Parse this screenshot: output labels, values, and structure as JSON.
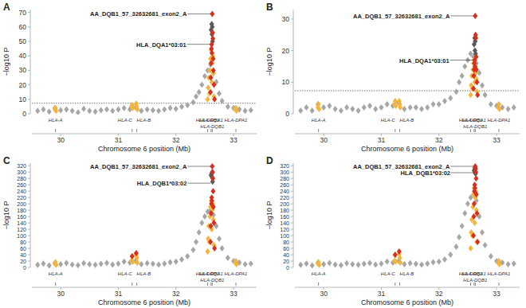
{
  "chart_data": [
    {
      "type": "scatter",
      "title": "A",
      "xlabel": "Chromosome 6 position (Mb)",
      "ylabel": "−log10 P",
      "xlim": [
        29.5,
        33.4
      ],
      "xticks": [
        30,
        31,
        32,
        33
      ],
      "ylim": [
        0,
        72
      ],
      "yticks": [
        0,
        10,
        20,
        30,
        40,
        50,
        60,
        70
      ],
      "marker": "diamond",
      "reference_line": 7.3,
      "series": [
        {
          "color": "#a6a6a6",
          "x": [
            29.6,
            29.7,
            29.8,
            29.9,
            30.0,
            30.1,
            30.2,
            30.3,
            30.4,
            30.5,
            30.6,
            30.7,
            30.8,
            30.9,
            31.0,
            31.1,
            31.2,
            31.3,
            31.4,
            31.5,
            31.6,
            31.7,
            31.8,
            31.9,
            32.0,
            32.1,
            32.2,
            32.3,
            32.35,
            32.4,
            32.45,
            32.5,
            32.55,
            32.6,
            32.65,
            32.7,
            32.75,
            32.8,
            32.9,
            33.0,
            33.1,
            33.2,
            33.3
          ],
          "values": [
            2,
            3,
            1.5,
            4,
            2.5,
            3,
            2,
            1,
            3.5,
            2,
            1.5,
            2.5,
            3,
            2,
            3,
            4,
            3,
            4.5,
            2,
            3,
            2.5,
            2,
            3,
            4,
            3.5,
            5,
            6,
            8,
            12,
            15,
            20,
            26,
            30,
            34,
            28,
            22,
            14,
            9,
            5,
            4,
            3,
            2,
            2.5
          ]
        },
        {
          "color": "#f5b53d",
          "x": [
            29.9,
            29.91,
            29.92,
            31.23,
            31.24,
            31.25,
            31.31,
            31.32,
            31.33,
            32.55,
            32.56,
            32.57,
            32.58,
            32.59,
            32.6,
            32.61,
            32.62,
            32.63,
            32.64,
            32.65,
            32.66,
            33.03,
            33.04,
            33.05
          ],
          "values": [
            3,
            4,
            2,
            5,
            6,
            4,
            7,
            5,
            3,
            10,
            18,
            25,
            14,
            30,
            38,
            44,
            22,
            35,
            40,
            28,
            12,
            3,
            4,
            2
          ]
        },
        {
          "color": "#5a5a5a",
          "x": [
            32.61,
            32.62,
            32.625,
            32.63,
            32.635
          ],
          "values": [
            58,
            62,
            55,
            60,
            50
          ]
        },
        {
          "color": "#d7301f",
          "x": [
            32.6,
            32.605,
            32.61,
            32.615,
            32.62,
            32.625,
            32.63,
            32.635,
            32.64,
            32.645,
            32.65,
            32.66,
            32.67
          ],
          "values": [
            15,
            25,
            35,
            45,
            48,
            42,
            69,
            56,
            52,
            38,
            30,
            20,
            10
          ]
        }
      ],
      "annotations": [
        {
          "text": "AA_DQB1_57_32632681_exon2_A",
          "x": 32.63,
          "y": 69
        },
        {
          "text": "HLA_DQA1*03:01",
          "x": 32.62,
          "y": 48
        }
      ],
      "genes": [
        {
          "label": "HLA-A",
          "x": 29.91
        },
        {
          "label": "HLA-C",
          "x": 31.24
        },
        {
          "label": "HLA-B",
          "x": 31.32
        },
        {
          "label": "HLA-DRB1",
          "x": 32.55
        },
        {
          "label": "HLA-DQA1",
          "x": 32.61
        },
        {
          "label": "HLA-DQB1",
          "x": 32.63
        },
        {
          "label": "HLA-DPA1",
          "x": 33.04
        }
      ]
    },
    {
      "type": "scatter",
      "title": "B",
      "xlabel": "Chromosome 6 position (Mb)",
      "ylabel": "−log10 P",
      "xlim": [
        29.5,
        33.4
      ],
      "xticks": [
        30,
        31,
        32,
        33
      ],
      "ylim": [
        0,
        33
      ],
      "yticks": [
        0,
        10,
        20,
        30
      ],
      "marker": "diamond",
      "reference_line": 7.3,
      "series": [
        {
          "color": "#a6a6a6",
          "x": [
            29.6,
            29.7,
            29.8,
            29.9,
            30.0,
            30.1,
            30.2,
            30.3,
            30.4,
            30.5,
            30.6,
            30.7,
            30.8,
            30.9,
            31.0,
            31.1,
            31.2,
            31.3,
            31.4,
            31.5,
            31.6,
            31.7,
            31.8,
            31.9,
            32.0,
            32.1,
            32.2,
            32.3,
            32.35,
            32.4,
            32.45,
            32.5,
            32.55,
            32.6,
            32.65,
            32.7,
            32.75,
            32.8,
            32.9,
            33.0,
            33.1,
            33.2,
            33.3
          ],
          "values": [
            1,
            2,
            1,
            3,
            2,
            2.5,
            1.5,
            1,
            2,
            1.5,
            1,
            2,
            2.5,
            1.5,
            2,
            3,
            2.5,
            3.5,
            1.5,
            2,
            2,
            1.5,
            2,
            3,
            3,
            4,
            5,
            7,
            10,
            12,
            15,
            17,
            19,
            18,
            16,
            13,
            9,
            6,
            3,
            2.5,
            2,
            1.5,
            2
          ]
        },
        {
          "color": "#f5b53d",
          "x": [
            29.9,
            29.91,
            29.92,
            31.23,
            31.24,
            31.25,
            31.31,
            31.32,
            31.33,
            32.55,
            32.56,
            32.57,
            32.58,
            32.59,
            32.6,
            32.61,
            32.62,
            32.63,
            32.64,
            32.65,
            32.66,
            33.03,
            33.04,
            33.05
          ],
          "values": [
            2,
            3,
            1.5,
            3,
            4,
            2.5,
            4,
            3,
            2,
            6,
            9,
            12,
            8,
            14,
            16,
            17,
            10,
            15,
            13,
            11,
            7,
            2,
            3,
            1.5
          ]
        },
        {
          "color": "#5a5a5a",
          "x": [
            32.61,
            32.62,
            32.625,
            32.63,
            32.635
          ],
          "values": [
            22,
            24,
            20,
            23,
            19
          ]
        },
        {
          "color": "#d7301f",
          "x": [
            32.6,
            32.605,
            32.61,
            32.615,
            32.62,
            32.625,
            32.63,
            32.635,
            32.64,
            32.645,
            32.65,
            32.66,
            32.67
          ],
          "values": [
            8,
            12,
            14,
            16,
            17,
            15,
            31,
            25,
            24,
            18,
            14,
            10,
            6
          ]
        }
      ],
      "annotations": [
        {
          "text": "AA_DQB1_57_32632681_exon2_A",
          "x": 32.63,
          "y": 31
        },
        {
          "text": "HLA_DQA1*03:01",
          "x": 32.62,
          "y": 17
        }
      ],
      "genes": [
        {
          "label": "HLA-A",
          "x": 29.91
        },
        {
          "label": "HLA-C",
          "x": 31.24
        },
        {
          "label": "HLA-B",
          "x": 31.32
        },
        {
          "label": "HLA-DRB1",
          "x": 32.55
        },
        {
          "label": "HLA-DQA1",
          "x": 32.61
        },
        {
          "label": "HLA-DQB1",
          "x": 32.63
        },
        {
          "label": "HLA-DPA1",
          "x": 33.04
        }
      ]
    },
    {
      "type": "scatter",
      "title": "C",
      "xlabel": "Chromosome 6 position (Mb)",
      "ylabel": "−log10 P",
      "xlim": [
        29.5,
        33.4
      ],
      "xticks": [
        30,
        31,
        32,
        33
      ],
      "ylim": [
        0,
        328
      ],
      "yticks": [
        0,
        20,
        40,
        60,
        80,
        100,
        120,
        140,
        160,
        180,
        200,
        220,
        240,
        260,
        280,
        300,
        320
      ],
      "marker": "diamond",
      "series": [
        {
          "color": "#a6a6a6",
          "x": [
            29.6,
            29.7,
            29.8,
            29.9,
            30.0,
            30.1,
            30.2,
            30.3,
            30.4,
            30.5,
            30.6,
            30.7,
            30.8,
            30.9,
            31.0,
            31.1,
            31.2,
            31.3,
            31.4,
            31.5,
            31.6,
            31.7,
            31.8,
            31.9,
            32.0,
            32.1,
            32.2,
            32.3,
            32.35,
            32.4,
            32.45,
            32.5,
            32.55,
            32.6,
            32.65,
            32.7,
            32.75,
            32.8,
            32.9,
            33.0,
            33.1,
            33.2,
            33.3
          ],
          "values": [
            8,
            12,
            6,
            15,
            10,
            14,
            9,
            7,
            13,
            10,
            8,
            11,
            14,
            9,
            12,
            18,
            15,
            20,
            10,
            13,
            11,
            9,
            12,
            16,
            18,
            25,
            35,
            55,
            80,
            110,
            140,
            160,
            175,
            180,
            165,
            130,
            90,
            60,
            30,
            20,
            15,
            10,
            12
          ]
        },
        {
          "color": "#f5b53d",
          "x": [
            29.9,
            29.91,
            29.92,
            31.23,
            31.24,
            31.25,
            31.31,
            31.32,
            31.33,
            32.55,
            32.56,
            32.57,
            32.58,
            32.59,
            32.6,
            32.61,
            32.62,
            32.63,
            32.64,
            32.65,
            32.66,
            33.03,
            33.04,
            33.05
          ],
          "values": [
            12,
            16,
            8,
            20,
            35,
            18,
            40,
            30,
            15,
            50,
            90,
            130,
            80,
            160,
            190,
            210,
            120,
            180,
            200,
            150,
            70,
            15,
            20,
            10
          ]
        },
        {
          "color": "#5a5a5a",
          "x": [
            32.61,
            32.62,
            32.625,
            32.63,
            32.635
          ],
          "values": [
            290,
            295,
            285,
            300,
            270
          ]
        },
        {
          "color": "#d7301f",
          "x": [
            31.24,
            31.31,
            32.6,
            32.605,
            32.61,
            32.615,
            32.62,
            32.625,
            32.63,
            32.635,
            32.64,
            32.645,
            32.65,
            32.66,
            32.67
          ],
          "values": [
            35,
            45,
            80,
            130,
            170,
            200,
            220,
            210,
            318,
            300,
            280,
            240,
            190,
            140,
            60
          ]
        }
      ],
      "annotations": [
        {
          "text": "AA_DQB1_57_32632681_exon2_A",
          "x": 32.63,
          "y": 318
        },
        {
          "text": "HLA_DQB1*03:02",
          "x": 32.63,
          "y": 265
        }
      ],
      "genes": [
        {
          "label": "HLA-A",
          "x": 29.91
        },
        {
          "label": "HLA-C",
          "x": 31.24
        },
        {
          "label": "HLA-B",
          "x": 31.32
        },
        {
          "label": "HLA-DRB1",
          "x": 32.55
        },
        {
          "label": "HLA-DQA1",
          "x": 32.61
        },
        {
          "label": "HLA-DQB1",
          "x": 32.63
        },
        {
          "label": "HLA-DPA1",
          "x": 33.04
        }
      ]
    },
    {
      "type": "scatter",
      "title": "D",
      "xlabel": "Chromosome 6 position (Mb)",
      "ylabel": "−log10 P",
      "xlim": [
        29.5,
        33.4
      ],
      "xticks": [
        30,
        31,
        32,
        33
      ],
      "ylim": [
        0,
        328
      ],
      "yticks": [
        0,
        20,
        40,
        60,
        80,
        100,
        120,
        140,
        160,
        180,
        200,
        220,
        240,
        260,
        280,
        300,
        320
      ],
      "marker": "diamond",
      "series": [
        {
          "color": "#a6a6a6",
          "x": [
            29.6,
            29.7,
            29.8,
            29.9,
            30.0,
            30.1,
            30.2,
            30.3,
            30.4,
            30.5,
            30.6,
            30.7,
            30.8,
            30.9,
            31.0,
            31.1,
            31.2,
            31.3,
            31.4,
            31.5,
            31.6,
            31.7,
            31.8,
            31.9,
            32.0,
            32.1,
            32.2,
            32.3,
            32.35,
            32.4,
            32.45,
            32.5,
            32.55,
            32.6,
            32.65,
            32.7,
            32.75,
            32.8,
            32.9,
            33.0,
            33.1,
            33.2,
            33.3
          ],
          "values": [
            8,
            12,
            6,
            15,
            10,
            14,
            9,
            7,
            13,
            10,
            8,
            11,
            14,
            9,
            12,
            18,
            15,
            20,
            10,
            13,
            11,
            9,
            12,
            16,
            18,
            25,
            40,
            65,
            95,
            130,
            170,
            200,
            220,
            230,
            210,
            160,
            110,
            70,
            35,
            20,
            15,
            10,
            12
          ]
        },
        {
          "color": "#f5b53d",
          "x": [
            29.9,
            29.91,
            29.92,
            31.23,
            31.24,
            31.25,
            31.31,
            31.32,
            31.33,
            32.55,
            32.56,
            32.57,
            32.58,
            32.59,
            32.6,
            32.61,
            32.62,
            32.63,
            32.64,
            32.65,
            32.66,
            33.03,
            33.04,
            33.05
          ],
          "values": [
            12,
            16,
            8,
            20,
            38,
            18,
            42,
            30,
            15,
            60,
            110,
            150,
            100,
            190,
            230,
            250,
            140,
            220,
            240,
            180,
            80,
            15,
            20,
            10
          ]
        },
        {
          "color": "#5a5a5a",
          "x": [
            32.61,
            32.62,
            32.625,
            32.63,
            32.635
          ],
          "values": [
            305,
            312,
            300,
            315,
            295
          ]
        },
        {
          "color": "#d7301f",
          "x": [
            31.24,
            31.31,
            32.6,
            32.605,
            32.61,
            32.615,
            32.62,
            32.625,
            32.63,
            32.635,
            32.64,
            32.645,
            32.65,
            32.66,
            32.67
          ],
          "values": [
            40,
            50,
            100,
            160,
            200,
            240,
            260,
            250,
            318,
            310,
            300,
            280,
            230,
            170,
            80
          ]
        }
      ],
      "annotations": [
        {
          "text": "AA_DQB1_57_32632681_exon2_A",
          "x": 32.63,
          "y": 318
        },
        {
          "text": "HLA_DQB1*03:02",
          "x": 32.64,
          "y": 298
        }
      ],
      "genes": [
        {
          "label": "HLA-A",
          "x": 29.91
        },
        {
          "label": "HLA-C",
          "x": 31.24
        },
        {
          "label": "HLA-B",
          "x": 31.32
        },
        {
          "label": "HLA-DRB1",
          "x": 32.55
        },
        {
          "label": "HLA-DQA1",
          "x": 32.61
        },
        {
          "label": "HLA-DQB1",
          "x": 32.63
        },
        {
          "label": "HLA-DPA1",
          "x": 33.04
        }
      ]
    }
  ]
}
